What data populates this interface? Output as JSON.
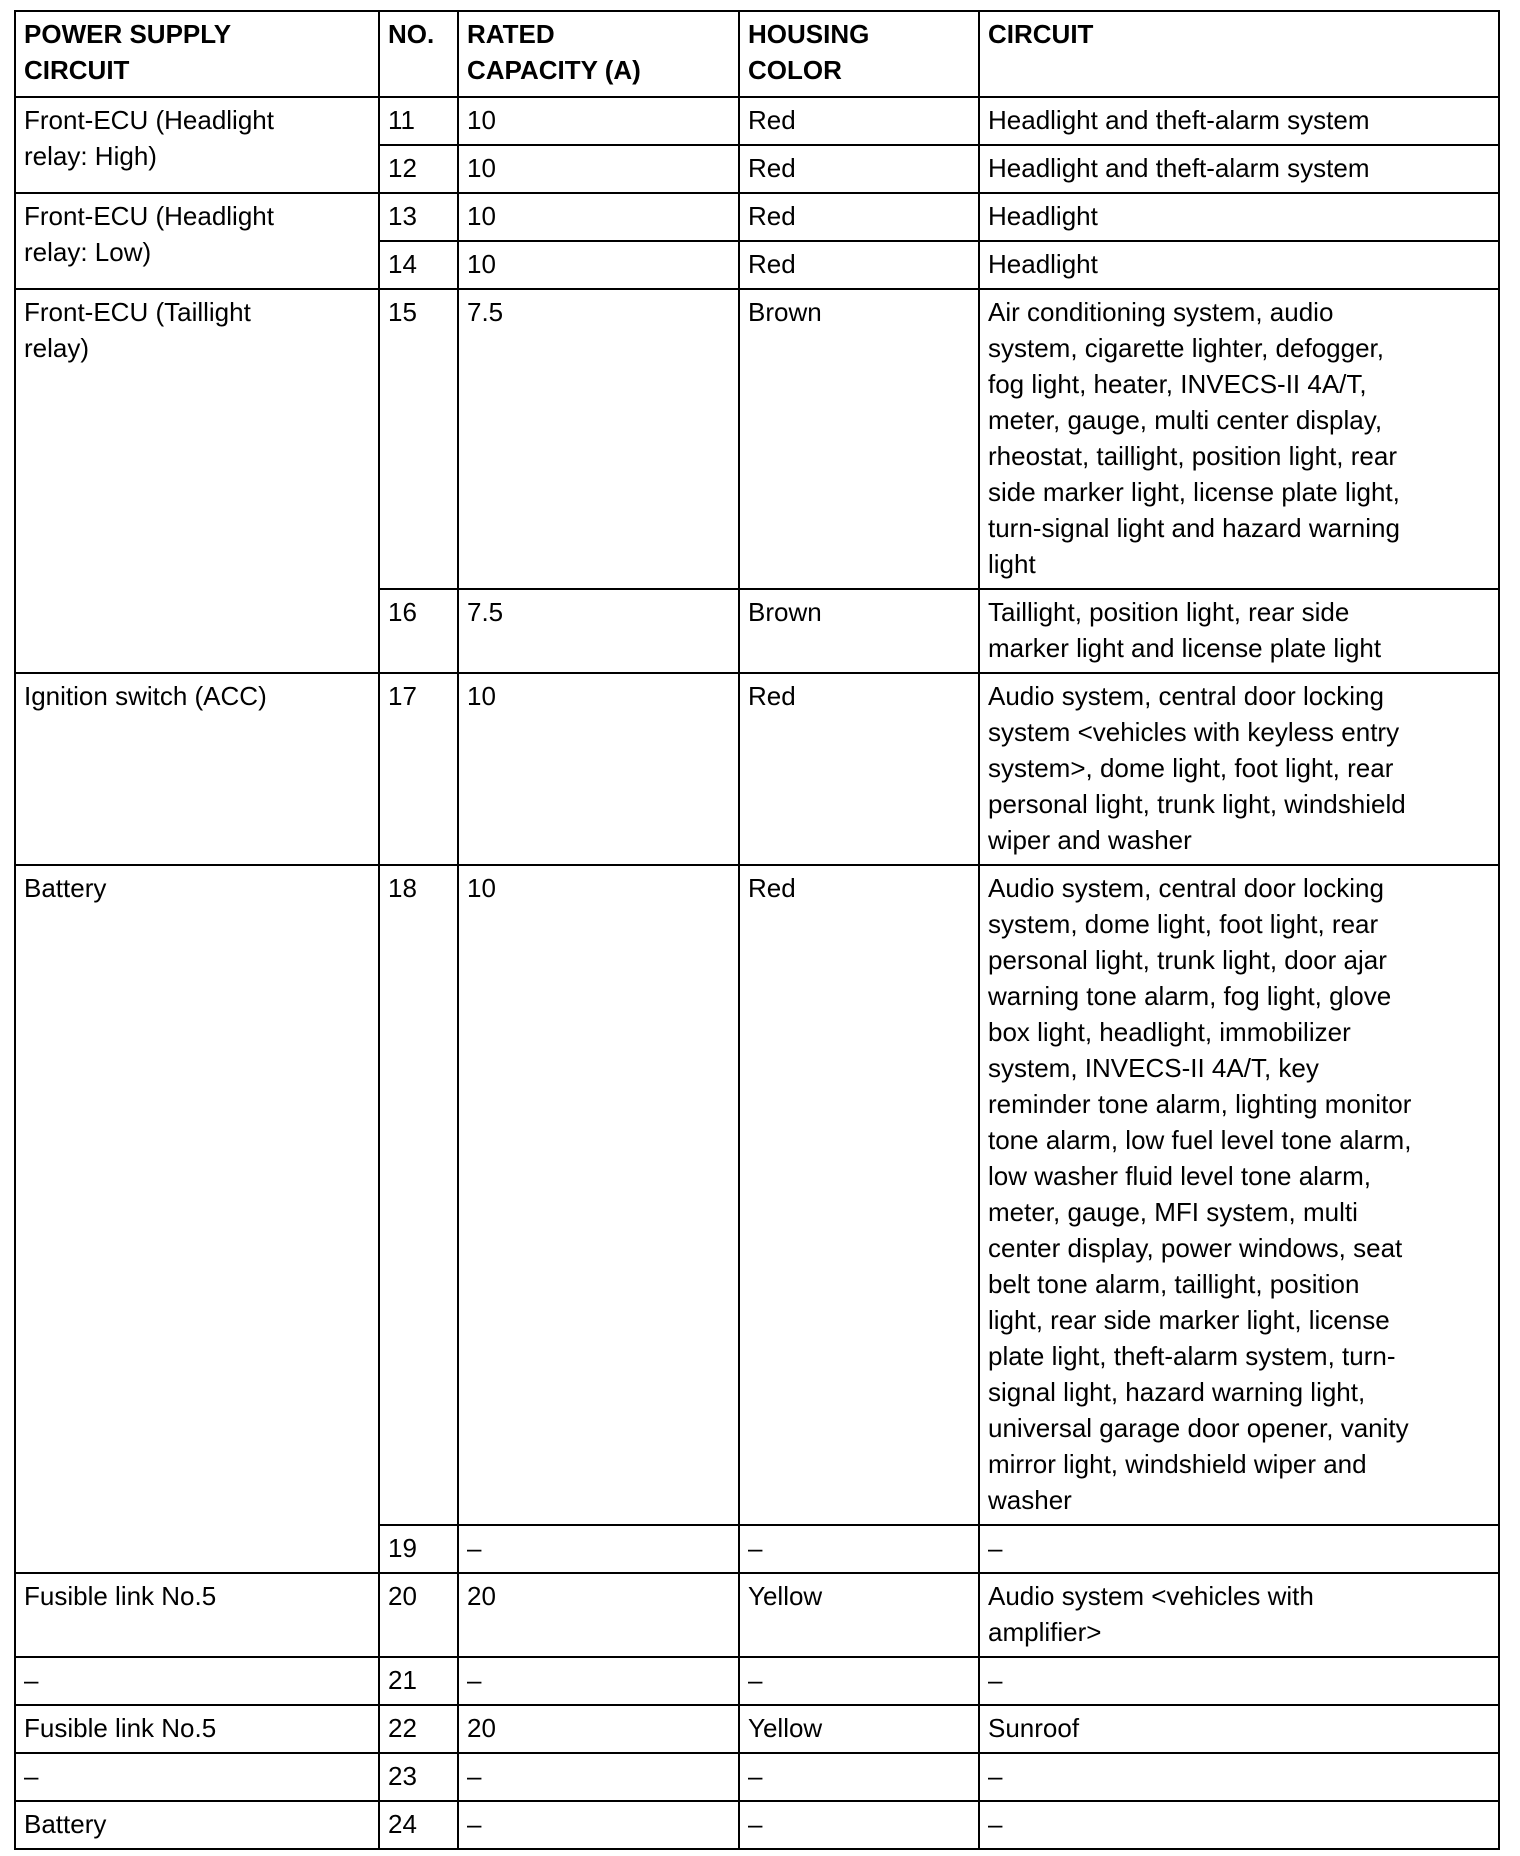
{
  "headers": [
    [
      "POWER SUPPLY",
      "CIRCUIT"
    ],
    [
      "NO."
    ],
    [
      "RATED",
      "CAPACITY (A)"
    ],
    [
      "HOUSING",
      "COLOR"
    ],
    [
      "CIRCUIT"
    ]
  ],
  "groups": [
    {
      "source": [
        "Front-ECU (Headlight",
        "relay: High)"
      ],
      "rows": [
        {
          "no": "11",
          "capacity": "10",
          "color": "Red",
          "circuit": [
            "Headlight and theft-alarm system"
          ]
        },
        {
          "no": "12",
          "capacity": "10",
          "color": "Red",
          "circuit": [
            "Headlight and theft-alarm system"
          ]
        }
      ]
    },
    {
      "source": [
        "Front-ECU (Headlight",
        "relay: Low)"
      ],
      "rows": [
        {
          "no": "13",
          "capacity": "10",
          "color": "Red",
          "circuit": [
            "Headlight"
          ]
        },
        {
          "no": "14",
          "capacity": "10",
          "color": "Red",
          "circuit": [
            "Headlight"
          ]
        }
      ]
    },
    {
      "source": [
        "Front-ECU (Taillight",
        "relay)"
      ],
      "rows": [
        {
          "no": "15",
          "capacity": "7.5",
          "color": "Brown",
          "circuit": [
            "Air conditioning system, audio",
            "system, cigarette lighter, defogger,",
            "fog light, heater, INVECS-II 4A/T,",
            "meter, gauge, multi center display,",
            "rheostat, taillight, position light, rear",
            "side marker light, license plate light,",
            "turn-signal light and hazard warning",
            "light"
          ]
        },
        {
          "no": "16",
          "capacity": "7.5",
          "color": "Brown",
          "circuit": [
            "Taillight, position light, rear side",
            "marker light and license plate light"
          ]
        }
      ]
    },
    {
      "source": [
        "Ignition switch (ACC)"
      ],
      "rows": [
        {
          "no": "17",
          "capacity": "10",
          "color": "Red",
          "circuit": [
            "Audio system, central door locking",
            "system <vehicles with keyless entry",
            "system>, dome light, foot light, rear",
            "personal light, trunk light, windshield",
            "wiper and washer"
          ]
        }
      ]
    },
    {
      "source": [
        "Battery"
      ],
      "rows": [
        {
          "no": "18",
          "capacity": "10",
          "color": "Red",
          "circuit": [
            "Audio system, central door locking",
            "system, dome light, foot light, rear",
            "personal light, trunk light, door ajar",
            "warning tone alarm, fog light, glove",
            "box light, headlight, immobilizer",
            "system, INVECS-II 4A/T, key",
            "reminder tone alarm, lighting monitor",
            "tone alarm, low fuel level tone alarm,",
            "low washer fluid level tone alarm,",
            "meter, gauge, MFI system, multi",
            "center display, power windows, seat",
            "belt tone alarm, taillight, position",
            "light, rear side marker light, license",
            "plate light, theft-alarm system, turn-",
            "signal light, hazard warning light,",
            "universal garage door opener, vanity",
            "mirror light, windshield wiper and",
            "washer"
          ]
        },
        {
          "no": "19",
          "capacity": "–",
          "color": "–",
          "circuit": [
            "–"
          ]
        }
      ]
    },
    {
      "source": [
        "Fusible link No.5"
      ],
      "rows": [
        {
          "no": "20",
          "capacity": "20",
          "color": "Yellow",
          "circuit": [
            "Audio system <vehicles with",
            "amplifier>"
          ]
        }
      ]
    },
    {
      "source": [
        "–"
      ],
      "rows": [
        {
          "no": "21",
          "capacity": "–",
          "color": "–",
          "circuit": [
            "–"
          ]
        }
      ]
    },
    {
      "source": [
        "Fusible link No.5"
      ],
      "rows": [
        {
          "no": "22",
          "capacity": "20",
          "color": "Yellow",
          "circuit": [
            "Sunroof"
          ]
        }
      ]
    },
    {
      "source": [
        "–"
      ],
      "rows": [
        {
          "no": "23",
          "capacity": "–",
          "color": "–",
          "circuit": [
            "–"
          ]
        }
      ]
    },
    {
      "source": [
        "Battery"
      ],
      "rows": [
        {
          "no": "24",
          "capacity": "–",
          "color": "–",
          "circuit": [
            "–"
          ]
        }
      ]
    }
  ]
}
